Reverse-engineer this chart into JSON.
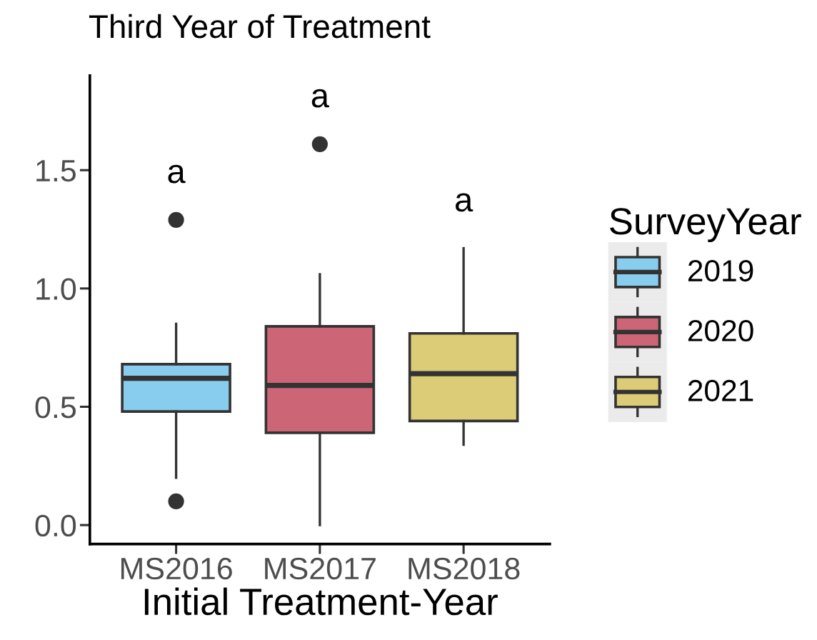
{
  "chart_data": {
    "type": "box",
    "title": "Third Year of Treatment",
    "xlabel": "Initial Treatment-Year",
    "legend_title": "SurveyYear",
    "categories": [
      "MS2016",
      "MS2017",
      "MS2018"
    ],
    "series": [
      {
        "name": "2019",
        "color": "#88ccee",
        "boxes": [
          {
            "low": 0.2,
            "q1": 0.48,
            "median": 0.62,
            "q3": 0.68,
            "high": 0.85,
            "outliers": [
              1.29,
              0.1
            ]
          },
          null,
          null
        ]
      },
      {
        "name": "2020",
        "color": "#cc6677",
        "boxes": [
          null,
          {
            "low": 0.0,
            "q1": 0.39,
            "median": 0.59,
            "q3": 0.84,
            "high": 1.06,
            "outliers": [
              1.61
            ]
          },
          null
        ]
      },
      {
        "name": "2021",
        "color": "#ddcc77",
        "boxes": [
          null,
          null,
          {
            "low": 0.34,
            "q1": 0.44,
            "median": 0.64,
            "q3": 0.81,
            "high": 1.17
          }
        ]
      }
    ],
    "ylim": [
      -0.08,
      1.9
    ],
    "yticks": [
      {
        "value": 0,
        "label": "0.0"
      },
      0.5,
      {
        "value": 1,
        "label": "1.0"
      },
      1.5
    ],
    "annotations": [
      "a",
      "a",
      "a"
    ],
    "grid": false,
    "legend": "right"
  }
}
